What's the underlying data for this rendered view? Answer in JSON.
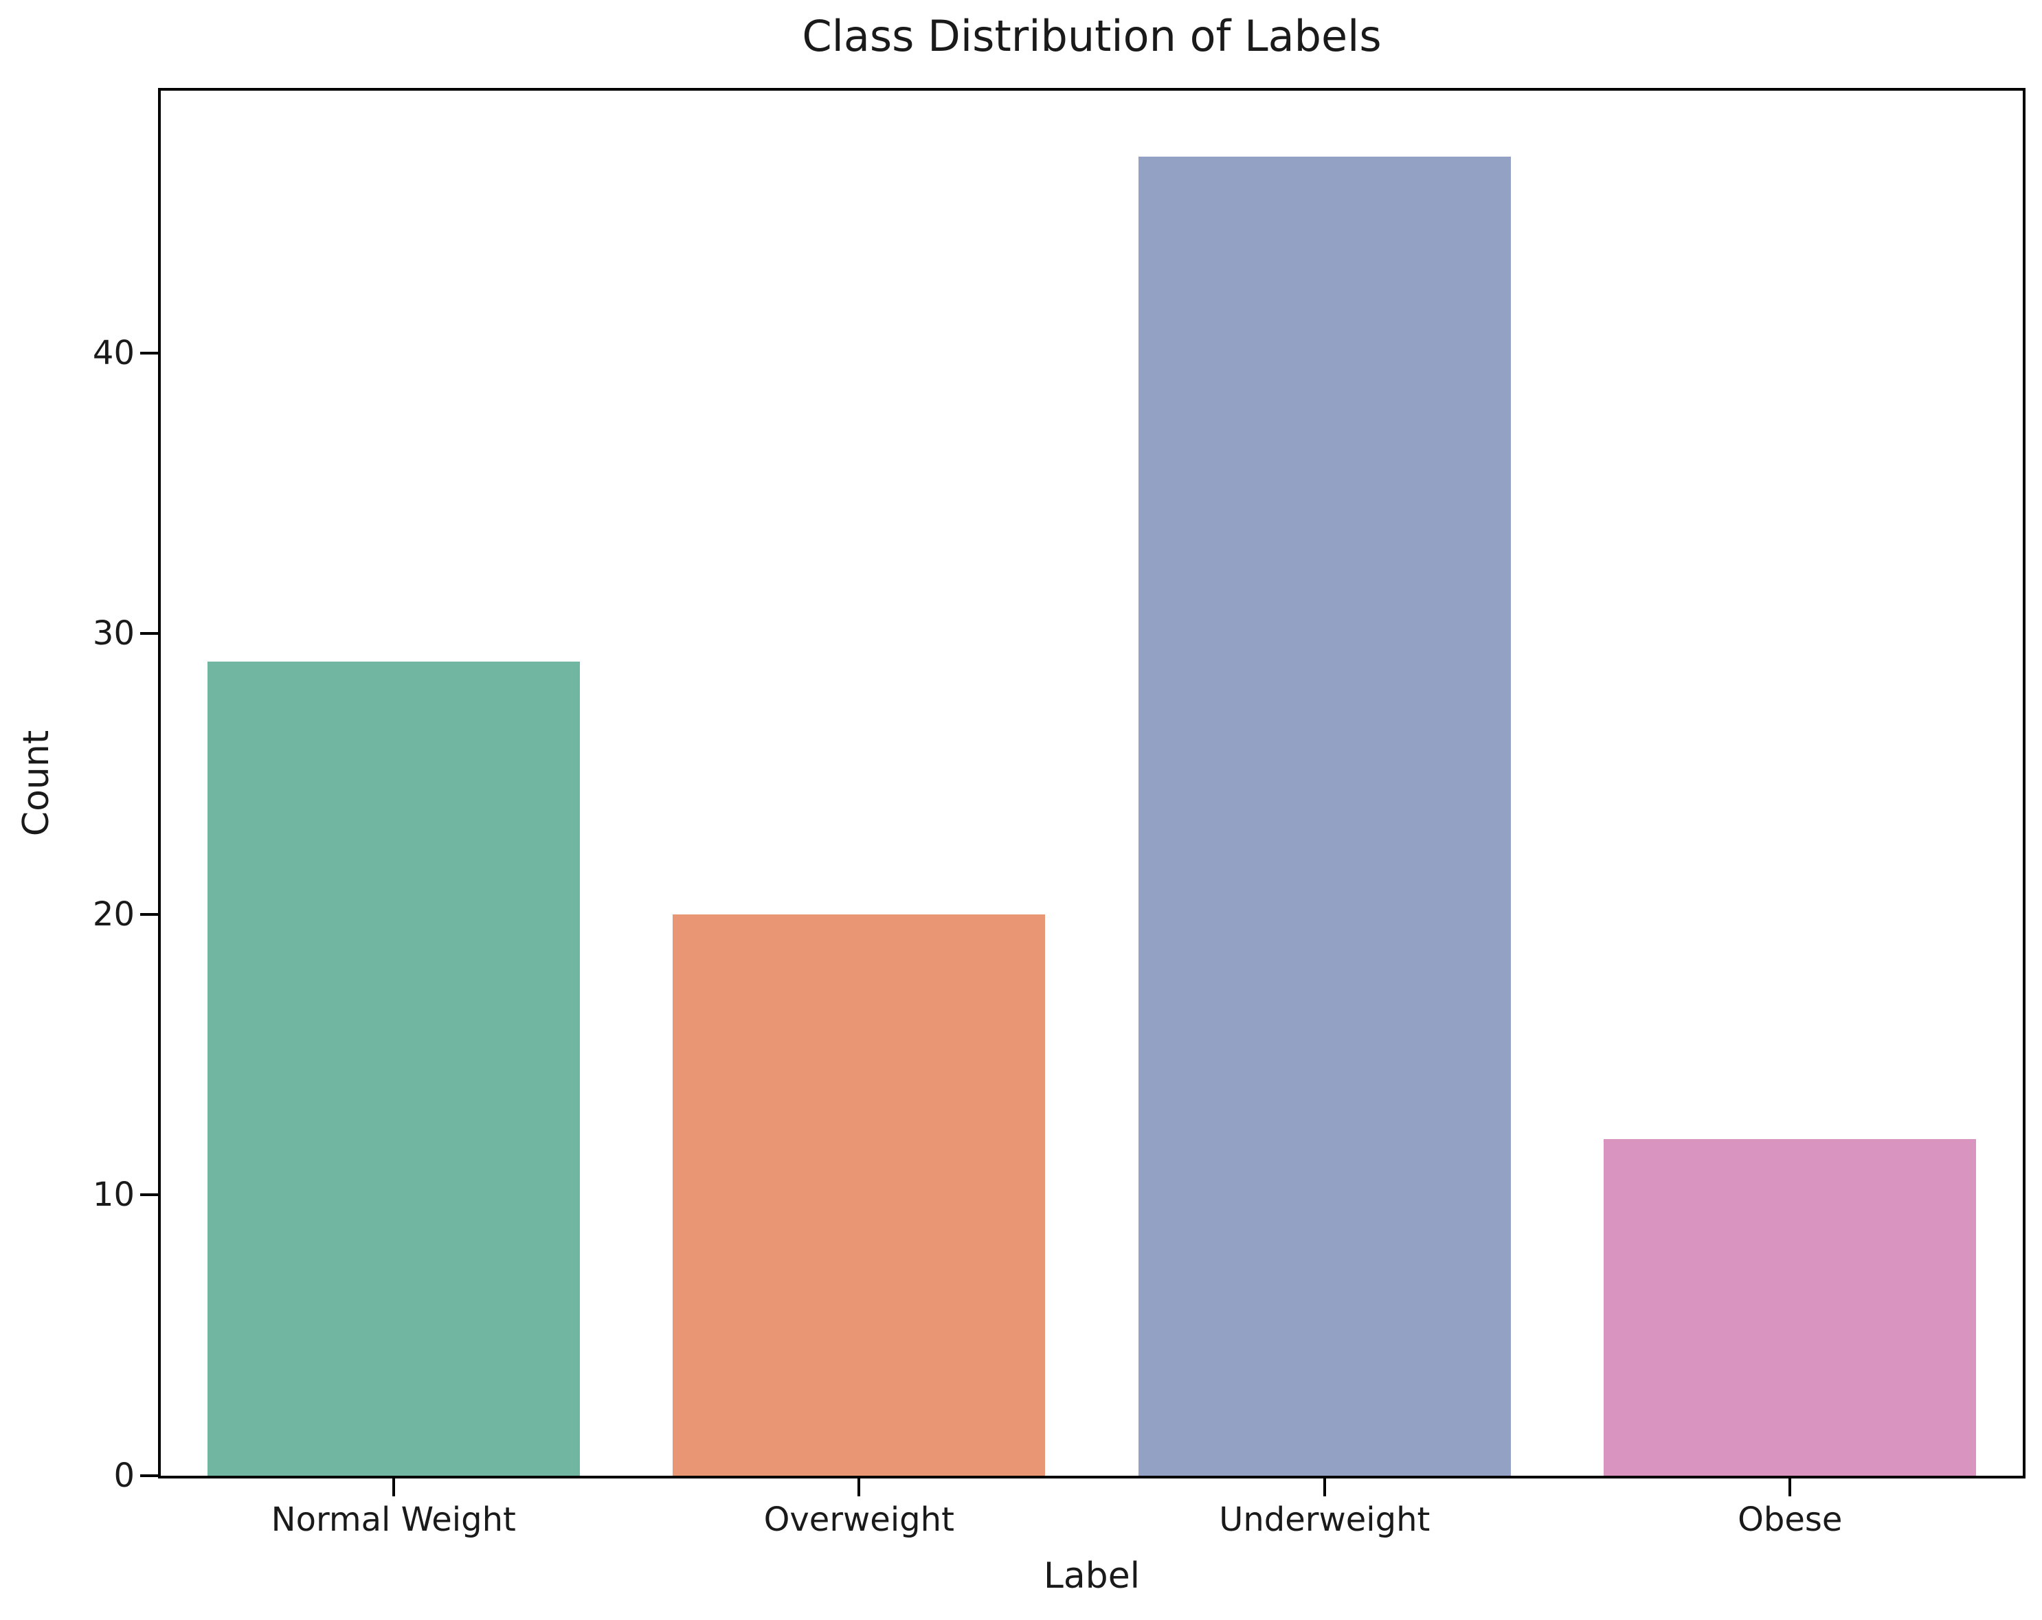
{
  "chart_data": {
    "type": "bar",
    "title": "Class Distribution of Labels",
    "xlabel": "Label",
    "ylabel": "Count",
    "categories": [
      "Normal Weight",
      "Overweight",
      "Underweight",
      "Obese"
    ],
    "values": [
      29,
      20,
      47,
      12
    ],
    "bar_colors": [
      "#71b6a1",
      "#e89673",
      "#93a2c4",
      "#d995bf"
    ],
    "yticks": [
      0,
      10,
      20,
      30,
      40
    ],
    "ylim": [
      0,
      49.35
    ],
    "grid": false,
    "legend": "none",
    "background_color": "#ffffff",
    "spine_color": "#000000",
    "text_color": "#1a1a1a"
  }
}
